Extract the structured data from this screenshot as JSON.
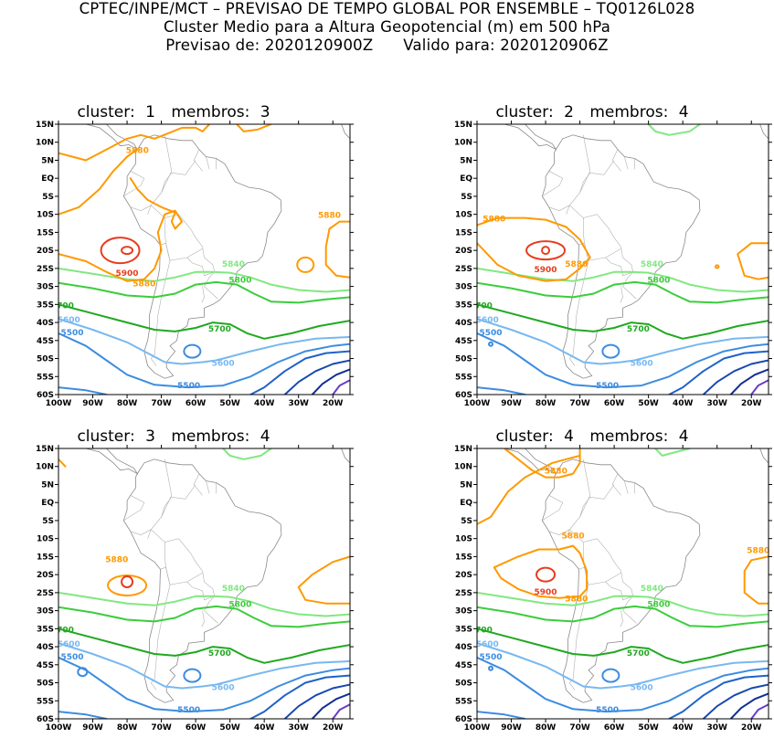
{
  "header": {
    "line1": "CPTEC/INPE/MCT – PREVISAO DE TEMPO GLOBAL POR ENSEMBLE – TQ0126L028",
    "line2": "Cluster Medio para a Altura Geopotencial (m) em 500 hPa",
    "line3_label_a": "Previsao de:",
    "line3_value_a": "2020120900Z",
    "line3_label_b": "Valido para:",
    "line3_value_b": "2020120906Z"
  },
  "axes": {
    "lat_labels": [
      "15N",
      "10N",
      "5N",
      "EQ",
      "5S",
      "10S",
      "15S",
      "20S",
      "25S",
      "30S",
      "35S",
      "40S",
      "45S",
      "50S",
      "55S",
      "60S"
    ],
    "lon_labels": [
      "100W",
      "90W",
      "80W",
      "70W",
      "60W",
      "50W",
      "40W",
      "30W",
      "20W"
    ]
  },
  "colors": {
    "c5880": "#ff9900",
    "c5900": "#e83c1e",
    "c5840": "#80e880",
    "c5800": "#3ccc3c",
    "c5700": "#20a820",
    "c5600": "#78b8f0",
    "c5500": "#3c8ce0",
    "deep1": "#1f62c8",
    "deep2": "#1848b0",
    "deep3": "#102e90",
    "deep4": "#6a3cc8",
    "land": "#8a8a8a"
  },
  "panels": [
    {
      "cluster_label": "cluster:",
      "cluster_num": "1",
      "membros_label": "membros:",
      "membros_num": "3",
      "labels": {
        "l5880a": "5880",
        "l5880b": "5880",
        "l5880c": "5880",
        "l5900": "5900",
        "l5840": "5840",
        "l5800": "5800",
        "l5700": "700",
        "l5700b": "5700",
        "l5600": "5600",
        "l5600b": "5600",
        "l5500": "5500",
        "l5500b": "5500"
      }
    },
    {
      "cluster_label": "cluster:",
      "cluster_num": "2",
      "membros_label": "membros:",
      "membros_num": "4",
      "labels": {
        "l5880a": "5880",
        "l5880b": "5880",
        "l5880c": "",
        "l5900": "5900",
        "l5840": "5840",
        "l5800": "5800",
        "l5700": "700",
        "l5700b": "5700",
        "l5600": "5600",
        "l5600b": "5600",
        "l5500": "5500",
        "l5500b": "5500"
      }
    },
    {
      "cluster_label": "cluster:",
      "cluster_num": "3",
      "membros_label": "membros:",
      "membros_num": "4",
      "labels": {
        "l5880a": "5880",
        "l5880b": "",
        "l5880c": "",
        "l5900": "",
        "l5840": "5840",
        "l5800": "5800",
        "l5700": "700",
        "l5700b": "5700",
        "l5600": "5600",
        "l5600b": "5600",
        "l5500": "5500",
        "l5500b": "5500"
      }
    },
    {
      "cluster_label": "cluster:",
      "cluster_num": "4",
      "membros_label": "membros:",
      "membros_num": "4",
      "labels": {
        "l5880a": "5880",
        "l5880b": "5880",
        "l5880c": "5880",
        "l5880d": "5880",
        "l5900": "5900",
        "l5840": "5840",
        "l5800": "5800",
        "l5700": "700",
        "l5700b": "5700",
        "l5600": "5600",
        "l5600b": "5600",
        "l5500": "5500",
        "l5500b": "5500"
      }
    }
  ]
}
